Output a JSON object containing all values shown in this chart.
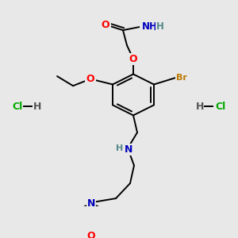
{
  "background_color": "#e8e8e8",
  "colors": {
    "C": "#000000",
    "O": "#ff0000",
    "N": "#0000bb",
    "Br": "#bb7700",
    "H": "#558888",
    "Cl": "#00aa00",
    "bond": "#000000"
  },
  "figsize": [
    3.0,
    3.0
  ],
  "dpi": 100
}
